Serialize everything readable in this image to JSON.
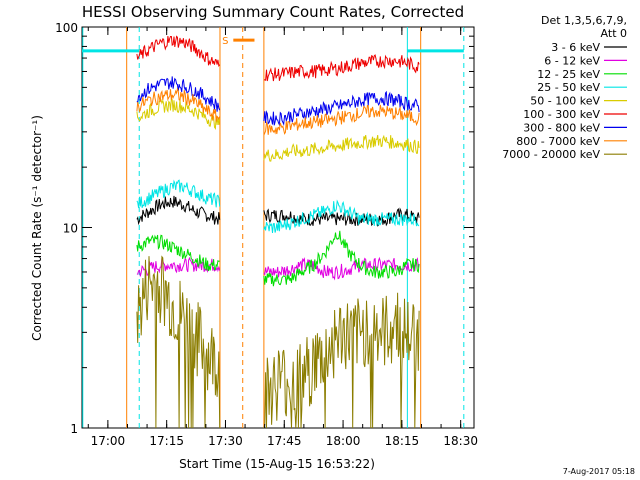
{
  "chart_data": {
    "type": "line",
    "title": "HESSI Observing Summary Count Rates, Corrected",
    "xlabel": "Start Time (15-Aug-15 16:53:22)",
    "ylabel": "Corrected Count Rate (s⁻¹ detector⁻¹)",
    "footer": "7-Aug-2017 05:18",
    "y_scale": "log",
    "ylim": [
      1,
      100
    ],
    "y_ticks": [
      {
        "value": 1,
        "label": "1"
      },
      {
        "value": 10,
        "label": "10"
      },
      {
        "value": 100,
        "label": "100"
      }
    ],
    "x_unit": "minutes after 16:53:22",
    "xlim": [
      0,
      100
    ],
    "x_ticks": [
      {
        "value": 6.6,
        "label": "17:00"
      },
      {
        "value": 21.6,
        "label": "17:15"
      },
      {
        "value": 36.6,
        "label": "17:30"
      },
      {
        "value": 51.6,
        "label": "17:45"
      },
      {
        "value": 66.6,
        "label": "18:00"
      },
      {
        "value": 81.6,
        "label": "18:15"
      },
      {
        "value": 96.6,
        "label": "18:30"
      }
    ],
    "legend": {
      "header": [
        "Det 1,3,5,6,7,9,",
        "Att 0"
      ],
      "position": "right"
    },
    "series": [
      {
        "name": "3 - 6 keV",
        "color": "#000000",
        "x": [
          14,
          17,
          20,
          23,
          26,
          29,
          32,
          35,
          47,
          50,
          53,
          56,
          59,
          62,
          65,
          68,
          71,
          74,
          77,
          80,
          83,
          86
        ],
        "y": [
          11,
          12,
          13,
          13.5,
          13,
          12,
          11.5,
          11,
          11.5,
          11.5,
          11.5,
          11,
          11,
          11,
          11,
          11,
          11,
          11,
          11,
          11.5,
          11.5,
          11
        ]
      },
      {
        "name": "6 - 12 keV",
        "color": "#e100e1",
        "x": [
          14,
          17,
          20,
          23,
          26,
          29,
          32,
          35,
          47,
          50,
          53,
          56,
          59,
          62,
          65,
          68,
          71,
          74,
          77,
          80,
          83,
          86
        ],
        "y": [
          6,
          6.2,
          6.5,
          6.5,
          6.5,
          6.5,
          6.5,
          6.5,
          6,
          6,
          6.2,
          6.5,
          6.5,
          6,
          6,
          6.2,
          6.5,
          6.5,
          6.5,
          6.5,
          6.5,
          6.5
        ]
      },
      {
        "name": "12 - 25 keV",
        "color": "#00dd00",
        "x": [
          14,
          17,
          20,
          23,
          26,
          29,
          32,
          35,
          47,
          50,
          53,
          56,
          59,
          62,
          65,
          68,
          71,
          74,
          77,
          80,
          83,
          86
        ],
        "y": [
          8,
          8.5,
          8.5,
          8,
          7.5,
          7,
          6.5,
          6.5,
          5.5,
          5.5,
          5.5,
          6,
          6.5,
          7.5,
          9.5,
          7.5,
          6.5,
          6,
          6,
          6,
          6.5,
          6.5
        ]
      },
      {
        "name": "25 - 50 keV",
        "color": "#00e5e5",
        "x": [
          14,
          17,
          20,
          23,
          26,
          29,
          32,
          35,
          47,
          50,
          53,
          56,
          59,
          62,
          65,
          68,
          71,
          74,
          77,
          80,
          83,
          86
        ],
        "y": [
          13,
          14,
          15,
          16,
          16,
          15,
          14,
          13.5,
          10,
          10,
          10.5,
          11,
          11.5,
          12,
          13,
          12,
          11,
          11,
          11,
          11,
          11,
          11
        ]
      },
      {
        "name": "50 - 100 keV",
        "color": "#d9cc00",
        "x": [
          14,
          17,
          20,
          23,
          26,
          29,
          32,
          35,
          47,
          50,
          53,
          56,
          59,
          62,
          65,
          68,
          71,
          74,
          77,
          80,
          83,
          86
        ],
        "y": [
          35,
          38,
          40,
          41,
          40,
          38,
          35,
          33,
          23,
          23,
          24,
          24,
          24.5,
          25,
          25.5,
          26,
          26.5,
          27,
          27,
          26.5,
          26,
          25
        ]
      },
      {
        "name": "100 - 300 keV",
        "color": "#ee0000",
        "x": [
          14,
          17,
          20,
          23,
          26,
          29,
          32,
          35,
          47,
          50,
          53,
          56,
          59,
          62,
          65,
          68,
          71,
          74,
          77,
          80,
          83,
          86
        ],
        "y": [
          70,
          77,
          83,
          86,
          84,
          78,
          70,
          64,
          58,
          58,
          59,
          60,
          60,
          61,
          62,
          64,
          66,
          67,
          68,
          68,
          66,
          63
        ]
      },
      {
        "name": "300 - 800 keV",
        "color": "#0000ee",
        "x": [
          14,
          17,
          20,
          23,
          26,
          29,
          32,
          35,
          47,
          50,
          53,
          56,
          59,
          62,
          65,
          68,
          71,
          74,
          77,
          80,
          83,
          86
        ],
        "y": [
          45,
          49,
          52,
          53,
          51,
          48,
          44,
          40,
          35,
          35,
          36,
          37,
          38,
          39,
          40,
          41.5,
          43,
          44,
          44,
          43,
          41.5,
          40
        ]
      },
      {
        "name": "800 - 7000 keV",
        "color": "#ff8000",
        "x": [
          14,
          17,
          20,
          23,
          26,
          29,
          32,
          35,
          47,
          50,
          53,
          56,
          59,
          62,
          65,
          68,
          71,
          74,
          77,
          80,
          83,
          86
        ],
        "y": [
          40,
          43,
          45,
          46,
          45,
          42,
          38,
          35,
          31,
          31,
          32,
          33,
          33.5,
          34,
          35,
          36,
          37,
          38,
          38,
          37,
          36,
          35
        ]
      },
      {
        "name": "7000 - 20000 keV",
        "color": "#8b7d00",
        "x": [
          14,
          17,
          20,
          23,
          26,
          29,
          32,
          35,
          47,
          50,
          53,
          56,
          59,
          62,
          65,
          68,
          71,
          74,
          77,
          80,
          83,
          86
        ],
        "y": [
          3,
          4.5,
          4.5,
          3.5,
          3,
          2.5,
          2,
          1.8,
          1.3,
          1.5,
          1.5,
          1.5,
          1.8,
          2,
          2.5,
          2.5,
          2.5,
          3,
          2.5,
          3,
          2.5,
          2.5
        ]
      }
    ],
    "gaps": [
      {
        "x": [
          35.2,
          46.4
        ]
      }
    ],
    "intervals": [
      {
        "type": "orbit-edge",
        "color": "#ff8000",
        "style": "solid",
        "x": [
          11.4,
          35.2,
          46.4,
          86.4
        ]
      },
      {
        "type": "saa",
        "color": "#ff8000",
        "style": "dashed",
        "x": [
          41.0
        ]
      },
      {
        "type": "night",
        "color": "#00e5e5",
        "style": "dashed",
        "x": [
          14.6,
          97.4
        ]
      },
      {
        "type": "night",
        "color": "#00e5e5",
        "style": "solid",
        "x": [
          0.2,
          83.0
        ]
      }
    ],
    "flag_bars": [
      {
        "color": "#00e5e5",
        "x": [
          0,
          14.6
        ],
        "y": 76
      },
      {
        "color": "#00e5e5",
        "x": [
          83,
          97.4
        ],
        "y": 76
      },
      {
        "color": "#ff8000",
        "x": [
          38.6,
          44
        ],
        "y": 86,
        "label": "S"
      }
    ]
  }
}
